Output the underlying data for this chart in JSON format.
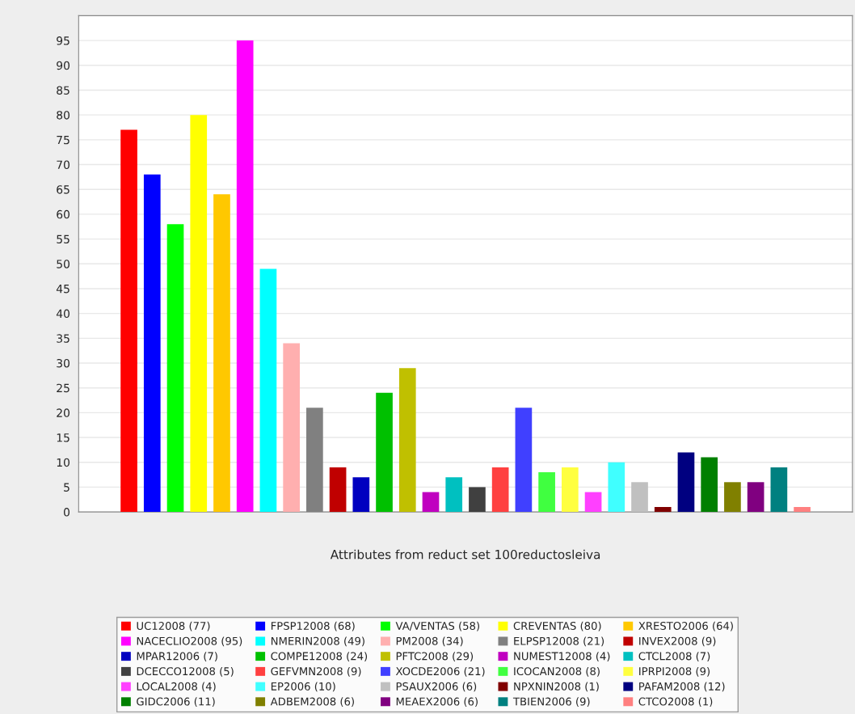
{
  "chart_data": {
    "type": "bar",
    "xlabel": "Attributes from reduct set 100reductosleiva",
    "categories": [
      null
    ],
    "ylim": [
      0,
      100
    ],
    "yticks": [
      0,
      5,
      10,
      15,
      20,
      25,
      30,
      35,
      40,
      45,
      50,
      55,
      60,
      65,
      70,
      75,
      80,
      85,
      90,
      95
    ],
    "grid": "y",
    "legend": "bottom",
    "series": [
      {
        "name": "UC12008 (77)",
        "color": "#ff0000",
        "values": [
          77
        ]
      },
      {
        "name": "FPSP12008 (68)",
        "color": "#0000ff",
        "values": [
          68
        ]
      },
      {
        "name": "VA/VENTAS (58)",
        "color": "#00ff00",
        "values": [
          58
        ]
      },
      {
        "name": "CREVENTAS (80)",
        "color": "#ffff00",
        "values": [
          80
        ]
      },
      {
        "name": "XRESTO2006 (64)",
        "color": "#ffc800",
        "values": [
          64
        ]
      },
      {
        "name": "NACECLIO2008 (95)",
        "color": "#ff00ff",
        "values": [
          95
        ]
      },
      {
        "name": "NMERIN2008 (49)",
        "color": "#00ffff",
        "values": [
          49
        ]
      },
      {
        "name": "PM2008 (34)",
        "color": "#ffafaf",
        "values": [
          34
        ]
      },
      {
        "name": "ELPSP12008 (21)",
        "color": "#808080",
        "values": [
          21
        ]
      },
      {
        "name": "INVEX2008 (9)",
        "color": "#c00000",
        "values": [
          9
        ]
      },
      {
        "name": "MPAR12006 (7)",
        "color": "#0000c0",
        "values": [
          7
        ]
      },
      {
        "name": "COMPE12008 (24)",
        "color": "#00c000",
        "values": [
          24
        ]
      },
      {
        "name": "PFTC2008 (29)",
        "color": "#c0c000",
        "values": [
          29
        ]
      },
      {
        "name": "NUMEST12008 (4)",
        "color": "#c000c0",
        "values": [
          4
        ]
      },
      {
        "name": "CTCL2008 (7)",
        "color": "#00c0c0",
        "values": [
          7
        ]
      },
      {
        "name": "DCECCO12008 (5)",
        "color": "#404040",
        "values": [
          5
        ]
      },
      {
        "name": "GEFVMN2008 (9)",
        "color": "#ff4040",
        "values": [
          9
        ]
      },
      {
        "name": "XOCDE2006 (21)",
        "color": "#4040ff",
        "values": [
          21
        ]
      },
      {
        "name": "ICOCAN2008 (8)",
        "color": "#40ff40",
        "values": [
          8
        ]
      },
      {
        "name": "IPRPI2008 (9)",
        "color": "#ffff40",
        "values": [
          9
        ]
      },
      {
        "name": "LOCAL2008 (4)",
        "color": "#ff40ff",
        "values": [
          4
        ]
      },
      {
        "name": "EP2006 (10)",
        "color": "#40ffff",
        "values": [
          10
        ]
      },
      {
        "name": "PSAUX2006 (6)",
        "color": "#c0c0c0",
        "values": [
          6
        ]
      },
      {
        "name": "NPXNIN2008 (1)",
        "color": "#800000",
        "values": [
          1
        ]
      },
      {
        "name": "PAFAM2008 (12)",
        "color": "#000080",
        "values": [
          12
        ]
      },
      {
        "name": "GIDC2006 (11)",
        "color": "#008000",
        "values": [
          11
        ]
      },
      {
        "name": "ADBEM2008 (6)",
        "color": "#808000",
        "values": [
          6
        ]
      },
      {
        "name": "MEAEX2006 (6)",
        "color": "#800080",
        "values": [
          6
        ]
      },
      {
        "name": "TBIEN2006 (9)",
        "color": "#008080",
        "values": [
          9
        ]
      },
      {
        "name": "CTCO2008 (1)",
        "color": "#ff8080",
        "values": [
          1
        ]
      }
    ]
  }
}
